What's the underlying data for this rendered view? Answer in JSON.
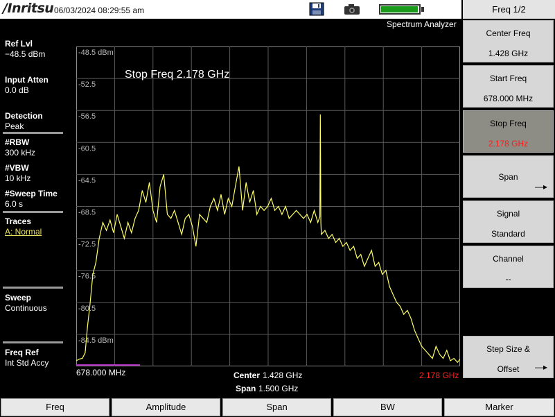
{
  "header": {
    "logo": "/Inritsu",
    "datetime": "06/03/2024 08:29:55 am",
    "mode": "Spectrum Analyzer",
    "battery_level": 0.98,
    "icons": [
      "disk-icon",
      "camera-icon",
      "battery-icon"
    ]
  },
  "left_panel": {
    "ref_lvl": {
      "label": "Ref Lvl",
      "value": "−48.5 dBm"
    },
    "input_atten": {
      "label": "Input Atten",
      "value": "0.0 dB"
    },
    "detection": {
      "label": "Detection",
      "value": "Peak"
    },
    "rbw": {
      "label": "#RBW",
      "value": "300 kHz"
    },
    "vbw": {
      "label": "#VBW",
      "value": "10 kHz"
    },
    "sweep_time": {
      "label": "#Sweep Time",
      "value": "6.0 s"
    },
    "traces": {
      "label": "Traces",
      "value": "A: Normal"
    },
    "sweep": {
      "label": "Sweep",
      "value": "Continuous"
    },
    "freq_ref": {
      "label": "Freq Ref",
      "value": "Int Std Accy"
    }
  },
  "plot": {
    "title": "Stop Freq 2.178 GHz",
    "y_labels": [
      "-48.5 dBm",
      "-52.5",
      "-56.5",
      "-60.5",
      "-64.5",
      "-68.5",
      "-72.5",
      "-76.5",
      "-80.5",
      "-84.5 dBm"
    ],
    "start_label": "678.000 MHz",
    "center_label": "Center",
    "center_value": "1.428 GHz",
    "span_label": "Span",
    "span_value": "1.500 GHz",
    "stop_label": "2.178 GHz",
    "trace_color": "#ffff66",
    "stop_color": "#ff2020"
  },
  "chart_data": {
    "type": "line",
    "xlabel": "",
    "ylabel": "",
    "xlim": [
      678,
      2178
    ],
    "ylim": [
      -88.5,
      -48.5
    ],
    "x_unit": "MHz",
    "y_unit": "dBm",
    "grid": true,
    "series": [
      {
        "x": [
          678,
          690,
          702,
          713,
          722,
          731,
          743,
          755,
          768,
          782,
          796,
          810,
          824,
          838,
          852,
          866,
          880,
          894,
          908,
          922,
          936,
          950,
          964,
          978,
          992,
          1006,
          1020,
          1034,
          1048,
          1062,
          1076,
          1090,
          1104,
          1118,
          1132,
          1146,
          1160,
          1174,
          1188,
          1202,
          1216,
          1230,
          1244,
          1258,
          1272,
          1286,
          1300,
          1314,
          1328,
          1342,
          1356,
          1370,
          1384,
          1398,
          1412,
          1426,
          1440,
          1454,
          1468,
          1482,
          1496,
          1510,
          1524,
          1538,
          1552,
          1566,
          1580,
          1594,
          1608,
          1622,
          1630,
          1632,
          1634,
          1636,
          1650,
          1664,
          1678,
          1692,
          1706,
          1720,
          1734,
          1748,
          1762,
          1776,
          1790,
          1804,
          1818,
          1832,
          1846,
          1860,
          1874,
          1888,
          1902,
          1916,
          1930,
          1944,
          1958,
          1972,
          1986,
          2000,
          2014,
          2028,
          2042,
          2056,
          2070,
          2084,
          2098,
          2112,
          2126,
          2140,
          2154,
          2168,
          2178
        ],
        "y": [
          -87.8,
          -87.6,
          -87.5,
          -86.8,
          -83.5,
          -81.0,
          -77.0,
          -75.5,
          -72.5,
          -70.5,
          -71.5,
          -70.2,
          -71.8,
          -69.5,
          -71.0,
          -72.5,
          -70.5,
          -71.8,
          -70.0,
          -69.0,
          -66.5,
          -68.0,
          -65.5,
          -69.0,
          -70.5,
          -66.0,
          -64.5,
          -69.5,
          -70.0,
          -69.0,
          -70.5,
          -72.0,
          -70.0,
          -69.5,
          -71.0,
          -73.5,
          -69.5,
          -70.0,
          -70.5,
          -68.5,
          -67.5,
          -69.0,
          -67.0,
          -69.5,
          -67.5,
          -68.5,
          -66.0,
          -63.5,
          -69.0,
          -65.5,
          -68.0,
          -66.5,
          -69.5,
          -68.5,
          -69.0,
          -68.5,
          -67.5,
          -69.0,
          -68.5,
          -69.5,
          -68.5,
          -70.0,
          -69.5,
          -69.0,
          -69.5,
          -70.0,
          -69.5,
          -70.5,
          -69.0,
          -70.5,
          -69.8,
          -57.0,
          -70.5,
          -72.0,
          -71.5,
          -72.5,
          -72.0,
          -73.0,
          -72.5,
          -73.5,
          -73.0,
          -74.0,
          -73.5,
          -75.0,
          -74.5,
          -76.0,
          -75.0,
          -74.0,
          -76.0,
          -75.5,
          -77.0,
          -76.5,
          -78.5,
          -79.5,
          -80.5,
          -81.0,
          -82.0,
          -81.5,
          -82.5,
          -84.0,
          -85.0,
          -86.0,
          -86.5,
          -87.0,
          -87.5,
          -86.0,
          -87.0,
          -87.5,
          -86.5,
          -87.8,
          -87.5,
          -88.0,
          -87.6
        ]
      }
    ]
  },
  "softkeys": {
    "menu_title": "Freq 1/2",
    "center_freq": {
      "label": "Center Freq",
      "value": "1.428 GHz"
    },
    "start_freq": {
      "label": "Start Freq",
      "value": "678.000 MHz"
    },
    "stop_freq": {
      "label": "Stop Freq",
      "value": "2.178 GHz"
    },
    "span": {
      "label": "Span"
    },
    "signal_standard": {
      "label": "Signal",
      "value": "Standard"
    },
    "channel": {
      "label": "Channel",
      "value": "--"
    },
    "step_size": {
      "label": "Step Size &",
      "value": "Offset"
    },
    "arrow_glyph": "—▸"
  },
  "bottom_tabs": [
    "Freq",
    "Amplitude",
    "Span",
    "BW",
    "Marker"
  ]
}
